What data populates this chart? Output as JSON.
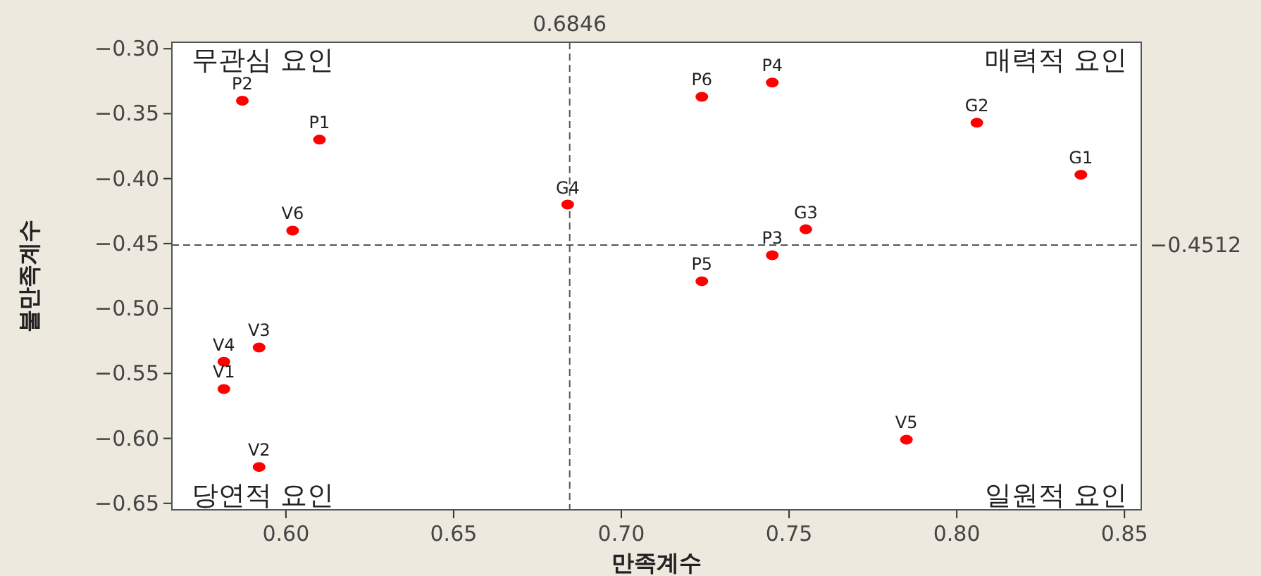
{
  "chart_data": {
    "type": "scatter",
    "xlabel": "만족계수",
    "ylabel": "불만족계수",
    "xlim": [
      0.566,
      0.855
    ],
    "ylim": [
      -0.655,
      -0.295
    ],
    "xticks": [
      {
        "value": 0.6,
        "label": "0.60"
      },
      0.65,
      {
        "value": 0.7,
        "label": "0.70"
      },
      0.75,
      {
        "value": 0.8,
        "label": "0.80"
      },
      0.85
    ],
    "yticks": [
      {
        "value": -0.65,
        "label": "−0.65"
      },
      {
        "value": -0.6,
        "label": "−0.60"
      },
      {
        "value": -0.55,
        "label": "−0.55"
      },
      {
        "value": -0.5,
        "label": "−0.50"
      },
      {
        "value": -0.45,
        "label": "−0.45"
      },
      {
        "value": -0.4,
        "label": "−0.40"
      },
      {
        "value": -0.35,
        "label": "−0.35"
      },
      {
        "value": -0.3,
        "label": "−0.30"
      }
    ],
    "grid": false,
    "marker": "circle",
    "series": [
      {
        "color": "#ff0000",
        "x": [
          0.587,
          0.61,
          0.602,
          0.684,
          0.724,
          0.745,
          0.806,
          0.837,
          0.755,
          0.745,
          0.724,
          0.785,
          0.5815,
          0.5815,
          0.592,
          0.592
        ],
        "values": [
          -0.34,
          -0.37,
          -0.44,
          -0.42,
          -0.337,
          -0.326,
          -0.357,
          -0.397,
          -0.439,
          -0.459,
          -0.479,
          -0.601,
          -0.541,
          -0.562,
          -0.53,
          -0.622
        ]
      }
    ],
    "ref_lines": [
      {
        "axis": "x",
        "value": 0.6846,
        "label": "0.6846",
        "line_style": "dashed",
        "color": "#555555"
      },
      {
        "axis": "y",
        "value": -0.4512,
        "label": "−0.4512",
        "line_style": "dashed",
        "color": "#555555"
      }
    ],
    "annotations": [
      "무관심 요인",
      "매력적 요인",
      "당연적 요인",
      "일원적 요인",
      {
        "text": "P2",
        "x": 0.587,
        "y": -0.34
      },
      {
        "text": "P1",
        "x": 0.61,
        "y": -0.37
      },
      {
        "text": "V6",
        "x": 0.602,
        "y": -0.44
      },
      {
        "text": "G4",
        "x": 0.684,
        "y": -0.42
      },
      {
        "text": "P6",
        "x": 0.724,
        "y": -0.337
      },
      {
        "text": "P4",
        "x": 0.745,
        "y": -0.326
      },
      {
        "text": "G2",
        "x": 0.806,
        "y": -0.357
      },
      {
        "text": "G1",
        "x": 0.837,
        "y": -0.397
      },
      {
        "text": "G3",
        "x": 0.755,
        "y": -0.439
      },
      {
        "text": "P3",
        "x": 0.745,
        "y": -0.459
      },
      {
        "text": "P5",
        "x": 0.724,
        "y": -0.479
      },
      {
        "text": "V5",
        "x": 0.785,
        "y": -0.601
      },
      {
        "text": "V4",
        "x": 0.5815,
        "y": -0.541
      },
      {
        "text": "V1",
        "x": 0.5815,
        "y": -0.562
      },
      {
        "text": "V3",
        "x": 0.592,
        "y": -0.53
      },
      {
        "text": "V2",
        "x": 0.592,
        "y": -0.622
      }
    ]
  }
}
